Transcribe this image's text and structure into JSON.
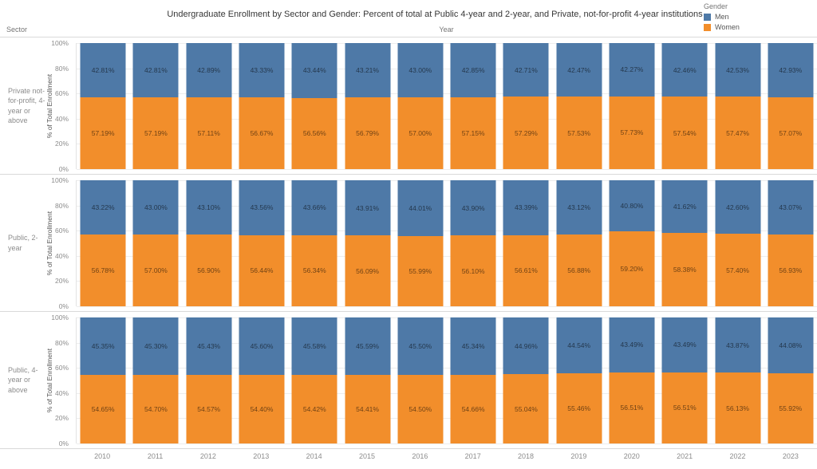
{
  "title": "Undergraduate Enrollment by Sector and Gender: Percent of total at Public 4-year and 2-year, and Private, not-for-profit 4-year institutions",
  "legend": {
    "title": "Gender",
    "items": [
      {
        "label": "Men",
        "color": "#4e79a7"
      },
      {
        "label": "Women",
        "color": "#f28e2b"
      }
    ]
  },
  "axes": {
    "sector_header": "Sector",
    "year_header": "Year",
    "y_axis_title": "% of Total Enrollment",
    "y_ticks": [
      "100%",
      "80%",
      "60%",
      "40%",
      "20%",
      "0%"
    ],
    "years": [
      "2010",
      "2011",
      "2012",
      "2013",
      "2014",
      "2015",
      "2016",
      "2017",
      "2018",
      "2019",
      "2020",
      "2021",
      "2022",
      "2023"
    ]
  },
  "chart_data": {
    "type": "bar",
    "stacked": true,
    "categories": [
      "2010",
      "2011",
      "2012",
      "2013",
      "2014",
      "2015",
      "2016",
      "2017",
      "2018",
      "2019",
      "2020",
      "2021",
      "2022",
      "2023"
    ],
    "xlabel": "Year",
    "ylabel": "% of Total Enrollment",
    "ylim": [
      0,
      100
    ],
    "grid": true,
    "legend_position": "top-right",
    "panels": [
      {
        "sector": "Private not-for-profit, 4-year or above",
        "series": [
          {
            "name": "Men",
            "color": "#4e79a7",
            "values": [
              42.81,
              42.81,
              42.89,
              43.33,
              43.44,
              43.21,
              43.0,
              42.85,
              42.71,
              42.47,
              42.27,
              42.46,
              42.53,
              42.93
            ]
          },
          {
            "name": "Women",
            "color": "#f28e2b",
            "values": [
              57.19,
              57.19,
              57.11,
              56.67,
              56.56,
              56.79,
              57.0,
              57.15,
              57.29,
              57.53,
              57.73,
              57.54,
              57.47,
              57.07
            ]
          }
        ]
      },
      {
        "sector": "Public, 2-year",
        "series": [
          {
            "name": "Men",
            "color": "#4e79a7",
            "values": [
              43.22,
              43.0,
              43.1,
              43.56,
              43.66,
              43.91,
              44.01,
              43.9,
              43.39,
              43.12,
              40.8,
              41.62,
              42.6,
              43.07
            ]
          },
          {
            "name": "Women",
            "color": "#f28e2b",
            "values": [
              56.78,
              57.0,
              56.9,
              56.44,
              56.34,
              56.09,
              55.99,
              56.1,
              56.61,
              56.88,
              59.2,
              58.38,
              57.4,
              56.93
            ]
          }
        ]
      },
      {
        "sector": "Public, 4-year or above",
        "series": [
          {
            "name": "Men",
            "color": "#4e79a7",
            "values": [
              45.35,
              45.3,
              45.43,
              45.6,
              45.58,
              45.59,
              45.5,
              45.34,
              44.96,
              44.54,
              43.49,
              43.49,
              43.87,
              44.08
            ]
          },
          {
            "name": "Women",
            "color": "#f28e2b",
            "values": [
              54.65,
              54.7,
              54.57,
              54.4,
              54.42,
              54.41,
              54.5,
              54.66,
              55.04,
              55.46,
              56.51,
              56.51,
              56.13,
              55.92
            ]
          }
        ]
      }
    ]
  }
}
